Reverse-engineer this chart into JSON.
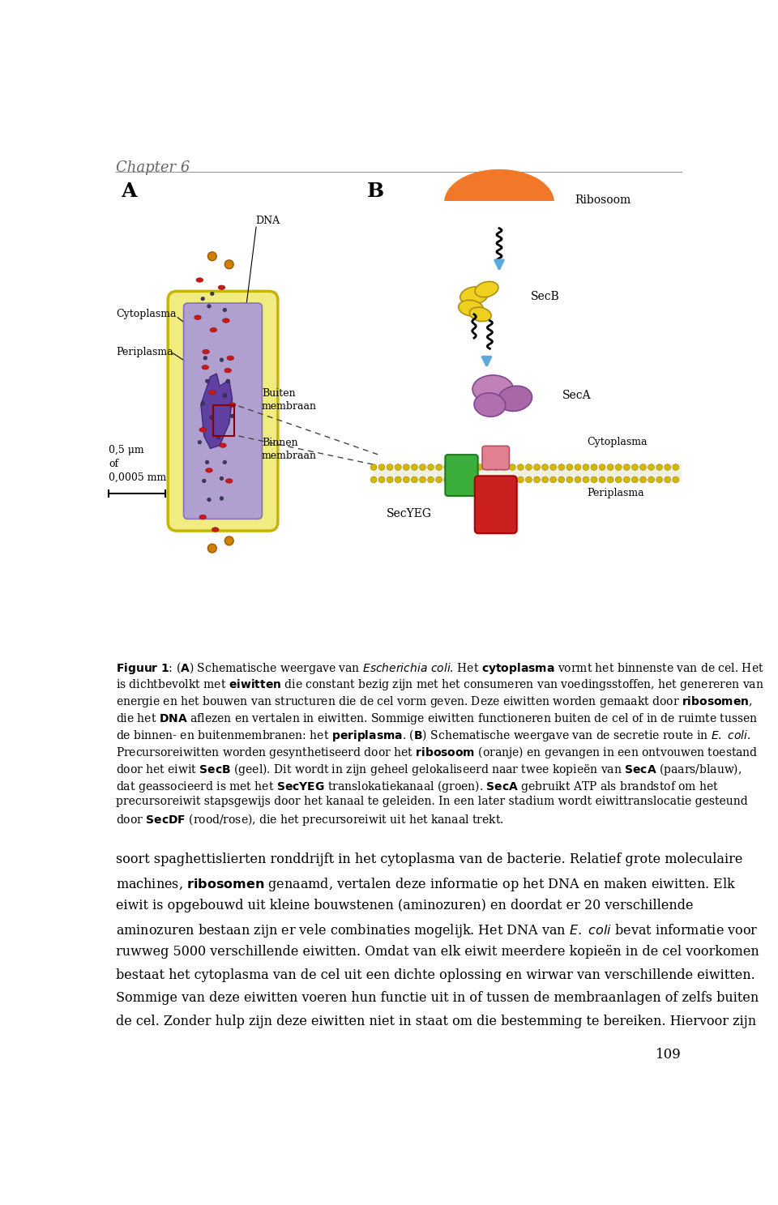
{
  "chapter_header": "Chapter 6",
  "page_number": "109",
  "bg_color": "#ffffff",
  "text_color": "#000000",
  "caption_lines": [
    {
      "text": "$\\bf{Figuur\\ 1}$: ($\\bf{A}$) Schematische weergave van $\\it{Escherichia\\ coli}$. Het $\\bf{cytoplasma}$ vormt het binnenste van de cel. Het"
    },
    {
      "text": "is dichtbevolkt met $\\bf{eiwitten}$ die constant bezig zijn met het consumeren van voedingsstoffen, het genereren van"
    },
    {
      "text": "energie en het bouwen van structuren die de cel vorm geven. Deze eiwitten worden gemaakt door $\\bf{ribosomen}$,"
    },
    {
      "text": "die het $\\bf{DNA}$ aflezen en vertalen in eiwitten. Sommige eiwitten functioneren buiten de cel of in de ruimte tussen"
    },
    {
      "text": "de binnen- en buitenmembranen: het $\\bf{periplasma}$. ($\\bf{B}$) Schematische weergave van de secretie route in $\\it{E.\\ coli}$."
    },
    {
      "text": "Precursoreiwitten worden gesynthetiseerd door het $\\bf{ribosoom}$ (oranje) en gevangen in een ontvouwen toestand"
    },
    {
      "text": "door het eiwit $\\bf{SecB}$ (geel). Dit wordt in zijn geheel gelokaliseerd naar twee kopieën van $\\bf{SecA}$ (paars/blauw),"
    },
    {
      "text": "dat geassocieerd is met het $\\bf{SecYEG}$ translokatiekanaal (groen). $\\bf{SecA}$ gebruikt ATP als brandstof om het"
    },
    {
      "text": "precursoreiwit stapsgewijs door het kanaal te geleiden. In een later stadium wordt eiwittranslocatie gesteund"
    },
    {
      "text": "door $\\bf{SecDF}$ (rood/rose), die het precursoreiwit uit het kanaal trekt."
    }
  ],
  "body_lines": [
    "soort spaghettislierten ronddrijft in het cytoplasma van de bacterie. Relatief grote moleculaire",
    "machines, $\\bf{ribosomen}$ genaamd, vertalen deze informatie op het DNA en maken eiwitten. Elk",
    "eiwit is opgebouwd uit kleine bouwstenen (aminozuren) en doordat er 20 verschillende",
    "aminozuren bestaan zijn er vele combinaties mogelijk. Het DNA van $\\it{E.\\ coli}$ bevat informatie voor",
    "ruwweg 5000 verschillende eiwitten. Omdat van elk eiwit meerdere kopieën in de cel voorkomen",
    "bestaat het cytoplasma van de cel uit een dichte oplossing en wirwar van verschillende eiwitten.",
    "Sommige van deze eiwitten voeren hun functie uit in of tussen de membraanlagen of zelfs buiten",
    "de cel. Zonder hulp zijn deze eiwitten niet in staat om die bestemming te bereiken. Hiervoor zijn"
  ]
}
